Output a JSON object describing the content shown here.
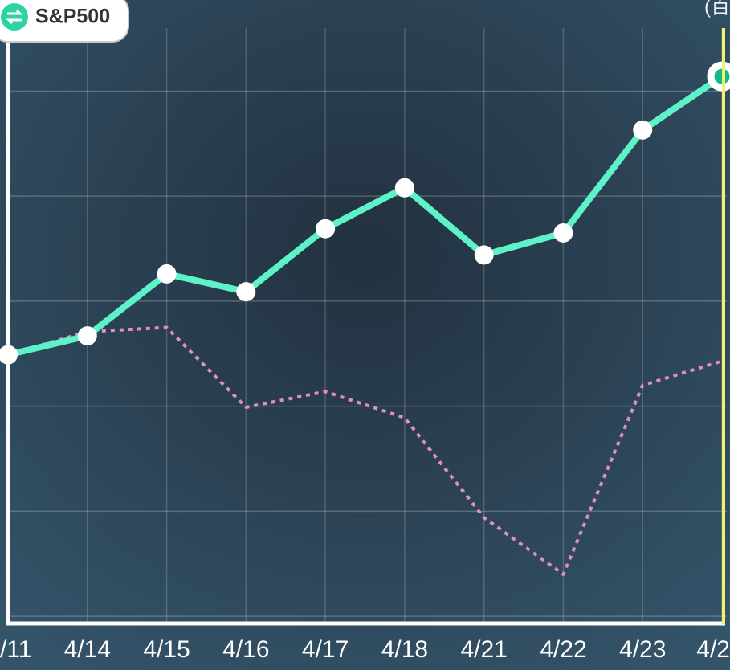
{
  "chart_data": {
    "type": "line",
    "badge": "S&P500",
    "corner_note": "(百",
    "categories": [
      "/11",
      "4/14",
      "4/15",
      "4/16",
      "4/17",
      "4/18",
      "4/21",
      "4/22",
      "4/23",
      "4/2"
    ],
    "series": [
      {
        "color": "#5ef2c8",
        "style": "solid",
        "values": [
          2.49,
          2.67,
          3.26,
          3.09,
          3.69,
          4.08,
          3.44,
          3.65,
          4.63,
          5.14
        ]
      },
      {
        "color": "#e08fc0",
        "style": "dotted",
        "values": [
          2.49,
          2.71,
          2.75,
          1.99,
          2.14,
          1.89,
          0.94,
          0.4,
          2.2,
          2.43
        ]
      }
    ],
    "ylim": [
      -0.06,
      5.6
    ],
    "yticks": [
      0,
      1,
      2,
      3,
      4,
      5
    ],
    "grid": true
  }
}
